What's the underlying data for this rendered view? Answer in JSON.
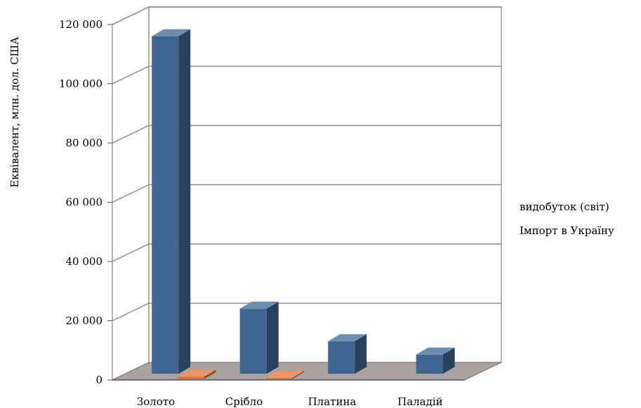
{
  "chart_data": {
    "type": "bar",
    "title": "",
    "xlabel": "",
    "ylabel": "Еквівалент, млн. дол. США",
    "categories": [
      "Золото",
      "Срібло",
      "Платина",
      "Паладій"
    ],
    "series": [
      {
        "name": "видобуток (світ)",
        "values": [
          114000,
          22000,
          11000,
          6500
        ],
        "color": "#3e6690"
      },
      {
        "name": "Імпорт в Україну",
        "values": [
          800,
          400,
          0,
          0
        ],
        "color": "#e0733a"
      }
    ],
    "ylim": [
      0,
      120000
    ],
    "yticks": [
      0,
      20000,
      40000,
      60000,
      80000,
      100000,
      120000
    ],
    "ytick_labels": [
      "0",
      "20 000",
      "40 000",
      "60 000",
      "80 000",
      "100 000",
      "120 000"
    ],
    "grid": true,
    "legend_position": "right"
  }
}
